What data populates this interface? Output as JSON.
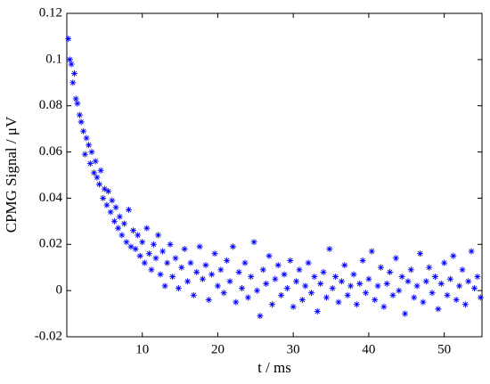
{
  "chart_data": {
    "type": "scatter",
    "x_label": "t / ms",
    "y_label": "CPMG Signal / μV",
    "marker": "asterisk",
    "color": "#0000ff",
    "xlim": [
      0,
      55
    ],
    "ylim": [
      -0.02,
      0.12
    ],
    "xticks": [
      10,
      20,
      30,
      40,
      50
    ],
    "yticks": [
      -0.02,
      0,
      0.02,
      0.04,
      0.06,
      0.08,
      0.1,
      0.12
    ],
    "grid": false,
    "x": [
      0.2,
      0.4,
      0.6,
      0.8,
      1.0,
      1.2,
      1.4,
      1.7,
      1.9,
      2.2,
      2.4,
      2.6,
      2.9,
      3.1,
      3.3,
      3.6,
      3.8,
      4.0,
      4.3,
      4.5,
      4.8,
      5.0,
      5.3,
      5.5,
      5.8,
      6.0,
      6.3,
      6.5,
      6.8,
      7.0,
      7.3,
      7.6,
      7.9,
      8.2,
      8.5,
      8.8,
      9.1,
      9.4,
      9.7,
      10.0,
      10.3,
      10.6,
      10.9,
      11.2,
      11.5,
      11.8,
      12.1,
      12.4,
      12.7,
      13.0,
      13.3,
      13.7,
      14.0,
      14.4,
      14.8,
      15.2,
      15.6,
      16.0,
      16.4,
      16.8,
      17.2,
      17.6,
      18.0,
      18.4,
      18.8,
      19.2,
      19.6,
      20.0,
      20.4,
      20.8,
      21.2,
      21.6,
      22.0,
      22.4,
      22.8,
      23.2,
      23.6,
      24.0,
      24.4,
      24.8,
      25.2,
      25.6,
      26.0,
      26.4,
      26.8,
      27.2,
      27.6,
      28.0,
      28.4,
      28.8,
      29.2,
      29.6,
      30.0,
      30.4,
      30.8,
      31.2,
      31.6,
      32.0,
      32.4,
      32.8,
      33.2,
      33.6,
      34.0,
      34.4,
      34.8,
      35.2,
      35.6,
      36.0,
      36.4,
      36.8,
      37.2,
      37.6,
      38.0,
      38.4,
      38.8,
      39.2,
      39.6,
      40.0,
      40.4,
      40.8,
      41.2,
      41.6,
      42.0,
      42.4,
      42.8,
      43.2,
      43.6,
      44.0,
      44.4,
      44.8,
      45.2,
      45.6,
      46.0,
      46.4,
      46.8,
      47.2,
      47.6,
      48.0,
      48.4,
      48.8,
      49.2,
      49.6,
      50.0,
      50.4,
      50.8,
      51.2,
      51.6,
      52.0,
      52.4,
      52.8,
      53.2,
      53.6,
      54.0,
      54.4,
      54.8
    ],
    "values": [
      0.109,
      0.1,
      0.098,
      0.09,
      0.094,
      0.083,
      0.081,
      0.076,
      0.073,
      0.069,
      0.059,
      0.066,
      0.063,
      0.055,
      0.06,
      0.051,
      0.056,
      0.049,
      0.046,
      0.052,
      0.04,
      0.044,
      0.037,
      0.043,
      0.034,
      0.039,
      0.03,
      0.036,
      0.027,
      0.032,
      0.024,
      0.029,
      0.021,
      0.035,
      0.019,
      0.026,
      0.018,
      0.024,
      0.015,
      0.021,
      0.012,
      0.027,
      0.016,
      0.009,
      0.02,
      0.014,
      0.024,
      0.007,
      0.017,
      0.002,
      0.012,
      0.02,
      0.006,
      0.014,
      0.001,
      0.01,
      0.018,
      0.004,
      0.012,
      -0.002,
      0.008,
      0.019,
      0.005,
      0.011,
      -0.004,
      0.007,
      0.016,
      0.002,
      0.009,
      -0.001,
      0.013,
      0.004,
      0.019,
      -0.005,
      0.008,
      0.001,
      0.012,
      -0.003,
      0.006,
      0.021,
      0.0,
      -0.011,
      0.009,
      0.003,
      0.015,
      -0.006,
      0.005,
      0.011,
      -0.002,
      0.007,
      0.001,
      0.013,
      -0.007,
      0.004,
      0.009,
      -0.004,
      0.002,
      0.012,
      -0.001,
      0.006,
      -0.009,
      0.003,
      0.008,
      -0.003,
      0.018,
      0.001,
      0.006,
      -0.005,
      0.004,
      0.011,
      -0.002,
      0.002,
      0.007,
      -0.006,
      0.003,
      0.013,
      -0.001,
      0.005,
      0.017,
      -0.004,
      0.002,
      0.01,
      -0.007,
      0.003,
      0.008,
      -0.002,
      0.014,
      0.0,
      0.006,
      -0.01,
      0.004,
      0.009,
      -0.003,
      0.002,
      0.016,
      -0.005,
      0.004,
      0.01,
      -0.001,
      0.006,
      -0.008,
      0.003,
      0.012,
      -0.002,
      0.005,
      0.015,
      -0.004,
      0.002,
      0.009,
      -0.006,
      0.004,
      0.017,
      0.001,
      0.006,
      -0.003
    ]
  }
}
